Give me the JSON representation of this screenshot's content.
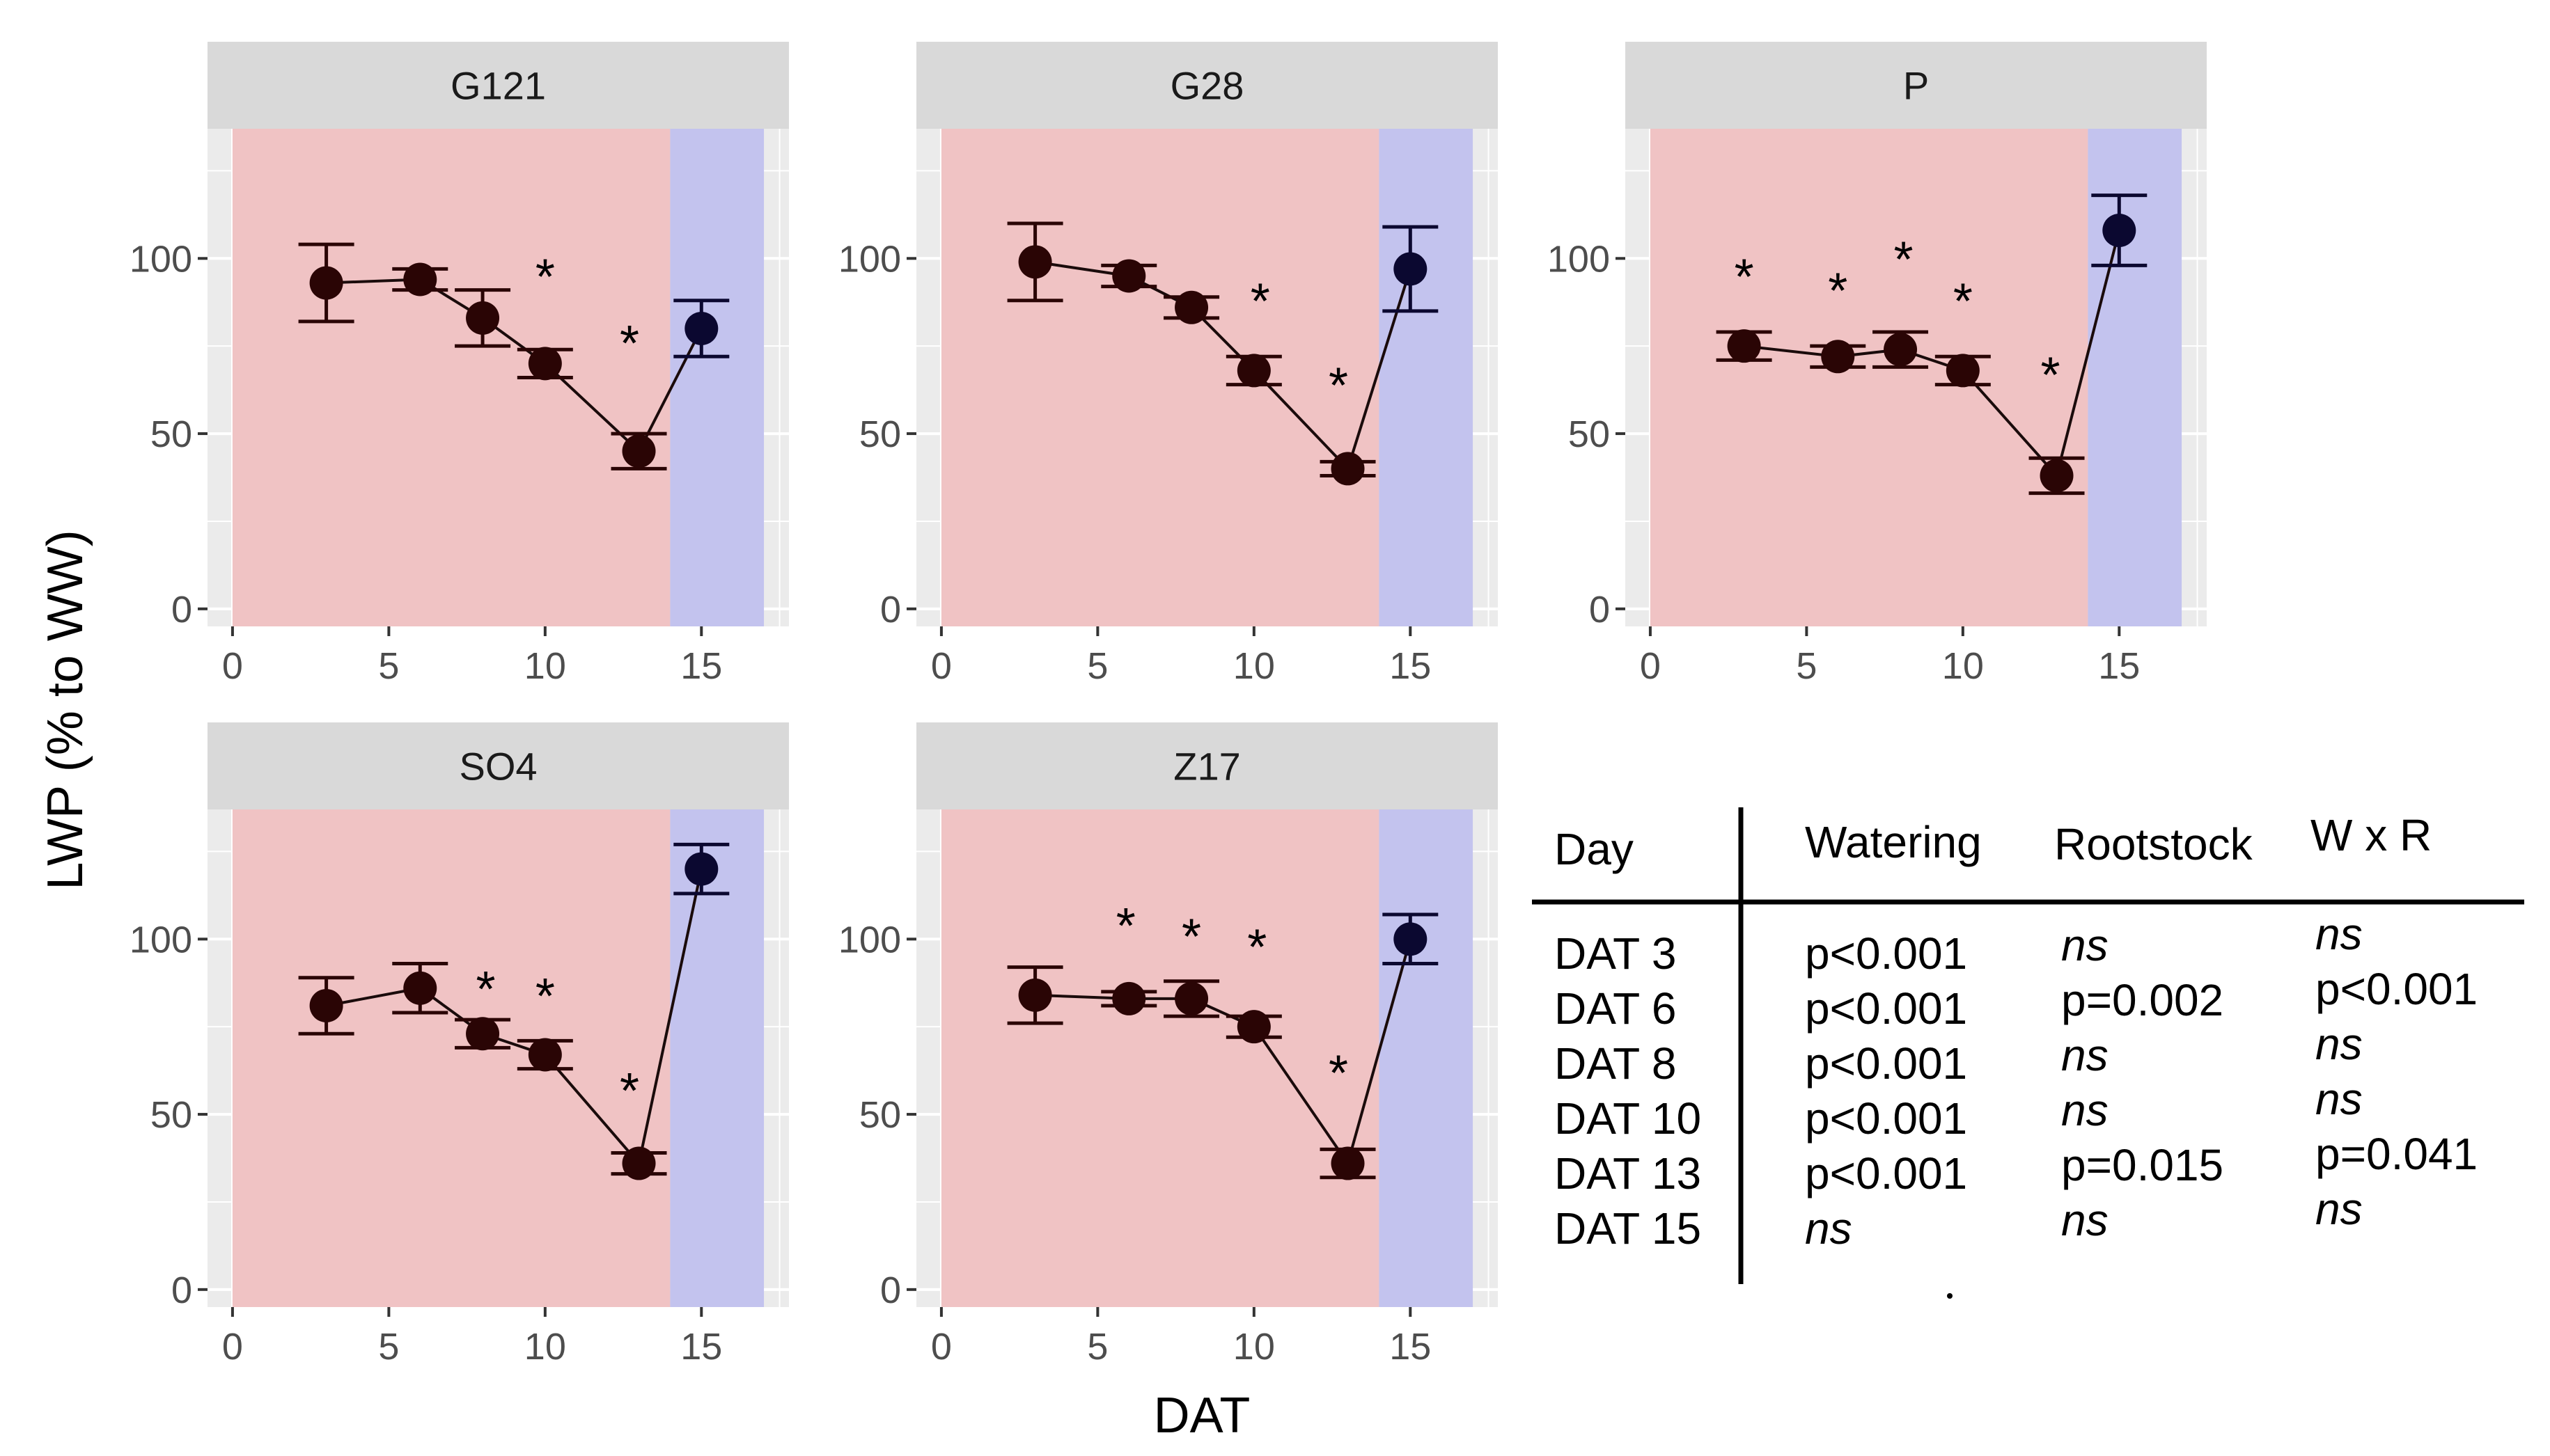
{
  "chart_data": {
    "type": "line",
    "xlabel": "DAT",
    "ylabel": "LWP (% to WW)",
    "xlim": [
      -0.8,
      17.8
    ],
    "ylim": [
      -5,
      137
    ],
    "xticks": [
      0,
      5,
      10,
      15
    ],
    "yticks": [
      0,
      50,
      100
    ],
    "shading": [
      {
        "name": "stress",
        "from": 0,
        "to": 14,
        "color": "#f0c3c4"
      },
      {
        "name": "recovery",
        "from": 14,
        "to": 17,
        "color": "#c3c3ee"
      }
    ],
    "colors": {
      "point_dark": "#2a0505",
      "point_recovery": "#0b0830",
      "line": "#1a0b0b",
      "panel_bg": "#ebebeb",
      "strip_bg": "#d9d9d9",
      "grid": "#ffffff"
    },
    "panels": [
      {
        "title": "G121",
        "x": [
          3,
          6,
          8,
          10,
          13,
          15
        ],
        "y": [
          93,
          94,
          83,
          70,
          45,
          80
        ],
        "err": [
          11,
          3,
          8,
          4,
          5,
          8
        ],
        "stars": [
          {
            "x": 10,
            "y": 95
          },
          {
            "x": 12.7,
            "y": 76
          }
        ]
      },
      {
        "title": "G28",
        "x": [
          3,
          6,
          8,
          10,
          13,
          15
        ],
        "y": [
          99,
          95,
          86,
          68,
          40,
          97
        ],
        "err": [
          11,
          3,
          3,
          4,
          2,
          12
        ],
        "stars": [
          {
            "x": 10.2,
            "y": 88
          },
          {
            "x": 12.7,
            "y": 64
          }
        ]
      },
      {
        "title": "P",
        "x": [
          3,
          6,
          8,
          10,
          13,
          15
        ],
        "y": [
          75,
          72,
          74,
          68,
          38,
          108
        ],
        "err": [
          4,
          3,
          5,
          4,
          5,
          10
        ],
        "stars": [
          {
            "x": 3,
            "y": 95
          },
          {
            "x": 6,
            "y": 91
          },
          {
            "x": 8.1,
            "y": 100
          },
          {
            "x": 10,
            "y": 88
          },
          {
            "x": 12.8,
            "y": 67
          }
        ]
      },
      {
        "title": "SO4",
        "x": [
          3,
          6,
          8,
          10,
          13,
          15
        ],
        "y": [
          81,
          86,
          73,
          67,
          36,
          120
        ],
        "err": [
          8,
          7,
          4,
          4,
          3,
          7
        ],
        "stars": [
          {
            "x": 8.1,
            "y": 86
          },
          {
            "x": 10,
            "y": 84
          },
          {
            "x": 12.7,
            "y": 57
          }
        ]
      },
      {
        "title": "Z17",
        "x": [
          3,
          6,
          8,
          10,
          13,
          15
        ],
        "y": [
          84,
          83,
          83,
          75,
          36,
          100
        ],
        "err": [
          8,
          2,
          5,
          3,
          4,
          7
        ],
        "stars": [
          {
            "x": 5.9,
            "y": 104
          },
          {
            "x": 8,
            "y": 101
          },
          {
            "x": 10.1,
            "y": 98
          },
          {
            "x": 12.7,
            "y": 62
          }
        ]
      }
    ]
  },
  "stats_table": {
    "headers": [
      "Day",
      "Watering",
      "Rootstock",
      "W x R"
    ],
    "rows": [
      {
        "day": "DAT 3",
        "watering": "p<0.001",
        "rootstock": "ns",
        "wxr": "ns"
      },
      {
        "day": "DAT 6",
        "watering": "p<0.001",
        "rootstock": "p=0.002",
        "wxr": "p<0.001"
      },
      {
        "day": "DAT 8",
        "watering": "p<0.001",
        "rootstock": "ns",
        "wxr": "ns"
      },
      {
        "day": "DAT 10",
        "watering": "p<0.001",
        "rootstock": "ns",
        "wxr": "ns"
      },
      {
        "day": "DAT 13",
        "watering": "p<0.001",
        "rootstock": "p=0.015",
        "wxr": "p=0.041"
      },
      {
        "day": "DAT 15",
        "watering": "ns",
        "rootstock": "ns",
        "wxr": "ns"
      }
    ]
  }
}
